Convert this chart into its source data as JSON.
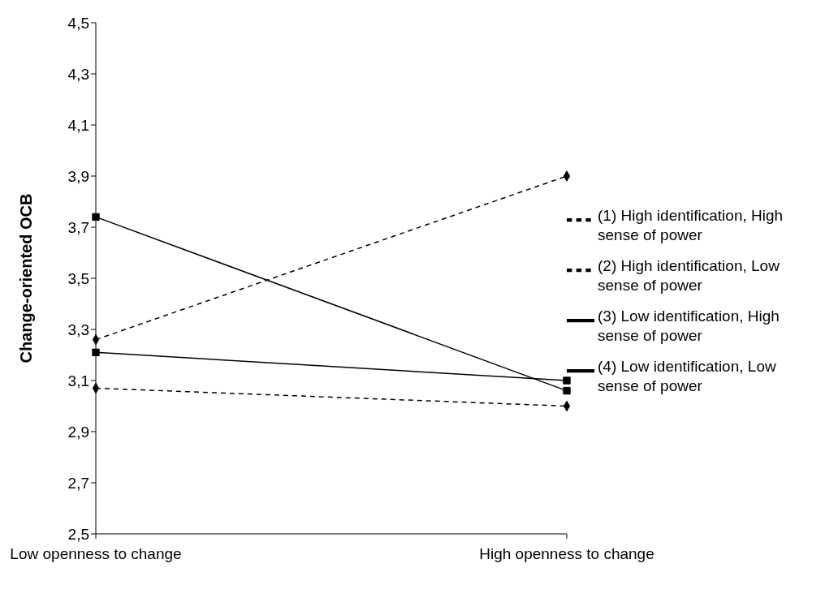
{
  "chart_data": {
    "type": "line",
    "ylabel": "Change-oriented OCB",
    "categories": [
      "Low openness to change",
      "High openness to change"
    ],
    "series": [
      {
        "name": "(1) High identification, High sense of power",
        "color": "#000000",
        "values": [
          3.26,
          3.9
        ],
        "marker": "diamond",
        "line_style": "dashed"
      },
      {
        "name": "(2) High identification, Low sense of power",
        "color": "#000000",
        "values": [
          3.07,
          3.0
        ],
        "marker": "diamond",
        "line_style": "dashed"
      },
      {
        "name": "(3) Low identification, High sense of power",
        "color": "#000000",
        "values": [
          3.74,
          3.06
        ],
        "marker": "square",
        "line_style": "solid"
      },
      {
        "name": "(4) Low identification, Low sense of power",
        "color": "#000000",
        "values": [
          3.21,
          3.1
        ],
        "marker": "square",
        "line_style": "solid"
      }
    ],
    "ylim": [
      2.5,
      4.5
    ],
    "yticks": [
      {
        "value": 2.5,
        "label": "2,5"
      },
      {
        "value": 2.7,
        "label": "2,7"
      },
      {
        "value": 2.9,
        "label": "2,9"
      },
      {
        "value": 3.1,
        "label": "3,1"
      },
      {
        "value": 3.3,
        "label": "3,3"
      },
      {
        "value": 3.5,
        "label": "3,5"
      },
      {
        "value": 3.7,
        "label": "3,7"
      },
      {
        "value": 3.9,
        "label": "3,9"
      },
      {
        "value": 4.1,
        "label": "4,1"
      },
      {
        "value": 4.3,
        "label": "4,3"
      },
      {
        "value": 4.5,
        "label": "4,5"
      }
    ],
    "grid": false,
    "legend": "right"
  }
}
